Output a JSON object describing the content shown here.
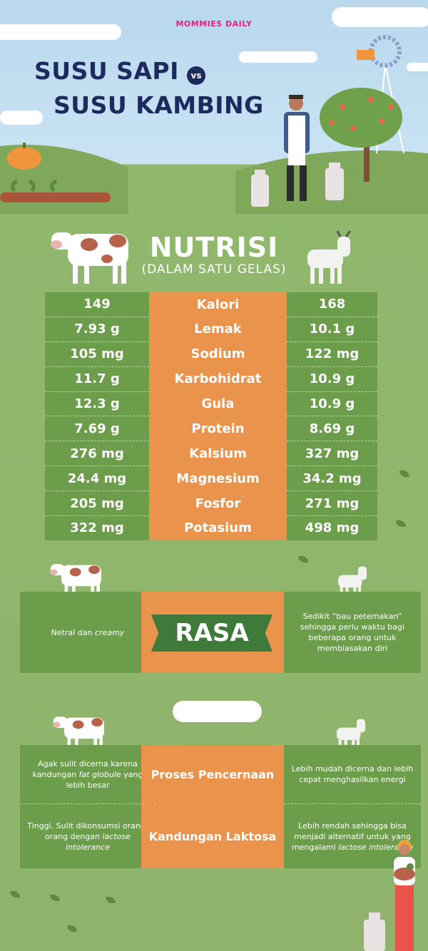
{
  "brand": "MOMMIES DAILY",
  "title": {
    "line1": "SUSU SAPI",
    "vs": "vs",
    "line2": "SUSU KAMBING"
  },
  "nutrition": {
    "title": "NUTRISI",
    "subtitle": "(DALAM SATU GELAS)",
    "rows": [
      {
        "cow": "149",
        "label": "Kalori",
        "goat": "168"
      },
      {
        "cow": "7.93 g",
        "label": "Lemak",
        "goat": "10.1 g"
      },
      {
        "cow": "105 mg",
        "label": "Sodium",
        "goat": "122 mg"
      },
      {
        "cow": "11.7 g",
        "label": "Karbohidrat",
        "goat": "10.9 g"
      },
      {
        "cow": "12.3 g",
        "label": "Gula",
        "goat": "10.9 g"
      },
      {
        "cow": "7.69 g",
        "label": "Protein",
        "goat": "8.69 g"
      },
      {
        "cow": "276 mg",
        "label": "Kalsium",
        "goat": "327 mg"
      },
      {
        "cow": "24.4 mg",
        "label": "Magnesium",
        "goat": "34.2 mg"
      },
      {
        "cow": "205 mg",
        "label": "Fosfor",
        "goat": "271 mg"
      },
      {
        "cow": "322 mg",
        "label": "Potasium",
        "goat": "498 mg"
      }
    ]
  },
  "rasa": {
    "label": "RASA",
    "cow_text": "Netral dan",
    "cow_text_italic": "creamy",
    "goat_text": "Sedikit “bau peternakan” sehingga perlu waktu bagi beberapa orang untuk membiasakan diri"
  },
  "digestion": {
    "label": "Proses Pencernaan",
    "cow_text_a": "Agak sulit dicerna karena kandungan",
    "cow_text_italic": "fat globule",
    "cow_text_b": "yang lebih besar",
    "goat_text": "Lebih mudah dicerna dan lebih cepat menghasilkan energi"
  },
  "lactose": {
    "label": "Kandungan Laktosa",
    "cow_text_a": "Tinggi. Sulit dikonsumsi orang- orang dengan",
    "cow_text_italic": "lactose intolerance",
    "goat_text_a": "Lebih rendah sehingga bisa menjadi alternatif untuk yang mengalami",
    "goat_text_italic": "lactose intolerance"
  },
  "colors": {
    "navy": "#1d2a5e",
    "green": "#6c9d4a",
    "orange": "#e9934c",
    "sky": "#c9e3f3",
    "grass": "#8fb36c",
    "brand_pink": "#e0247a"
  }
}
